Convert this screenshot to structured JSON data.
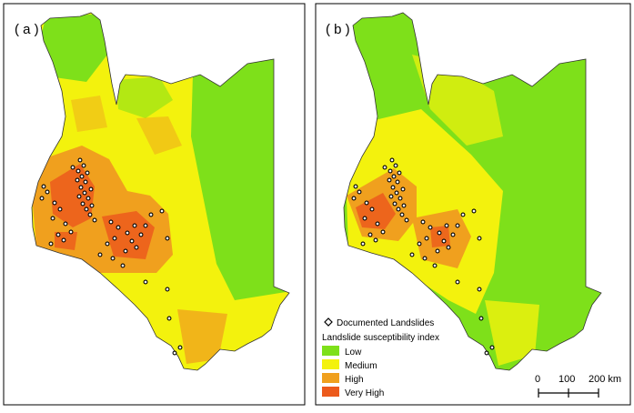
{
  "panels": [
    {
      "label": "( a )"
    },
    {
      "label": "( b )"
    }
  ],
  "legend": {
    "landslides_label": "Documented Landslides",
    "title": "Landslide susceptibility index",
    "classes": [
      {
        "label": "Low",
        "color": "#7ee01a"
      },
      {
        "label": "Medium",
        "color": "#f3f20d"
      },
      {
        "label": "High",
        "color": "#f0a01e"
      },
      {
        "label": "Very High",
        "color": "#ec5a1c"
      }
    ]
  },
  "scalebar": {
    "ticks": [
      "0",
      "100",
      "200 km"
    ]
  },
  "colors": {
    "low": "#7ee01a",
    "medium": "#f3f20d",
    "high": "#f0a01e",
    "very_high": "#ec5a1c",
    "border": "#000000"
  }
}
